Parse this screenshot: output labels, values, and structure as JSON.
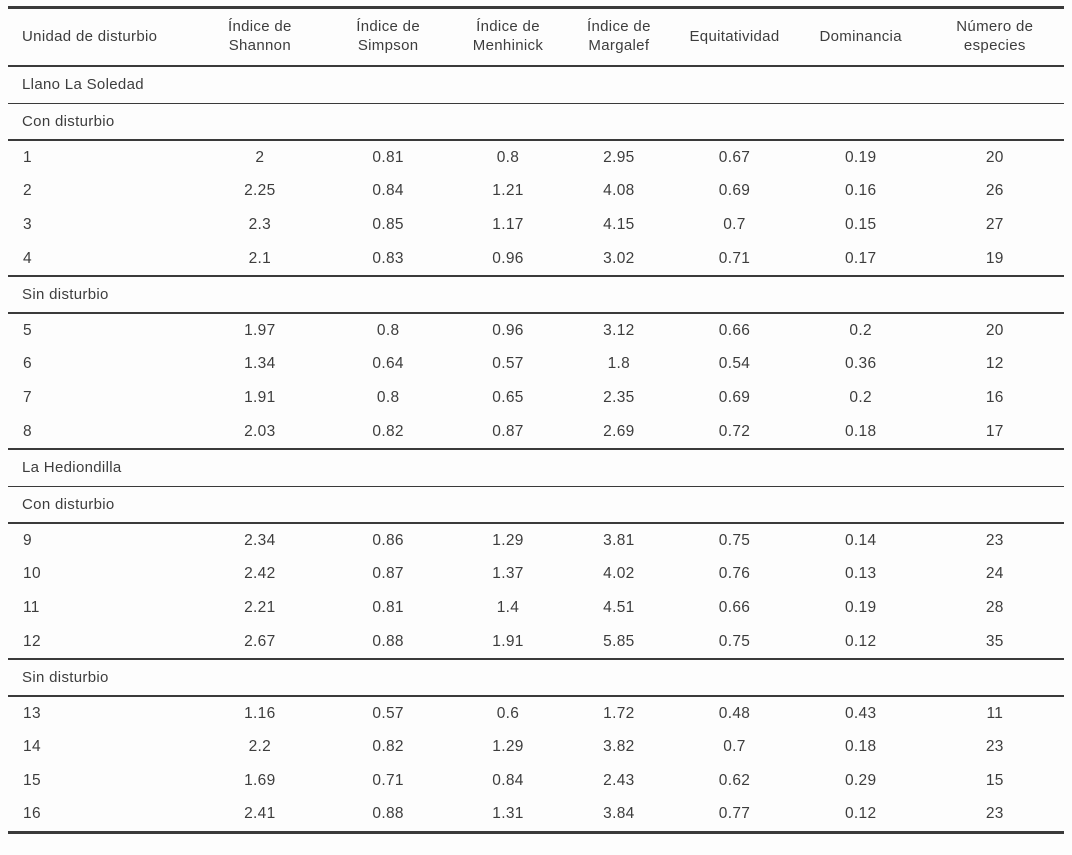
{
  "table": {
    "columns": [
      "Unidad de disturbio",
      "Índice de Shannon",
      "Índice de Simpson",
      "Índice de Menhinick",
      "Índice de Margalef",
      "Equitatividad",
      "Dominancia",
      "Número de especies"
    ],
    "rows": [
      {
        "type": "section",
        "label": "Llano La Soledad",
        "divider": "thin"
      },
      {
        "type": "section",
        "label": "Con disturbio",
        "divider": "thick"
      },
      {
        "type": "data",
        "divider": "none",
        "cells": [
          "1",
          "2",
          "0.81",
          "0.8",
          "2.95",
          "0.67",
          "0.19",
          "20"
        ]
      },
      {
        "type": "data",
        "divider": "none",
        "cells": [
          "2",
          "2.25",
          "0.84",
          "1.21",
          "4.08",
          "0.69",
          "0.16",
          "26"
        ]
      },
      {
        "type": "data",
        "divider": "none",
        "cells": [
          "3",
          "2.3",
          "0.85",
          "1.17",
          "4.15",
          "0.7",
          "0.15",
          "27"
        ]
      },
      {
        "type": "data",
        "divider": "thick",
        "cells": [
          "4",
          "2.1",
          "0.83",
          "0.96",
          "3.02",
          "0.71",
          "0.17",
          "19"
        ]
      },
      {
        "type": "section",
        "label": "Sin disturbio",
        "divider": "thick"
      },
      {
        "type": "data",
        "divider": "none",
        "cells": [
          "5",
          "1.97",
          "0.8",
          "0.96",
          "3.12",
          "0.66",
          "0.2",
          "20"
        ]
      },
      {
        "type": "data",
        "divider": "none",
        "cells": [
          "6",
          "1.34",
          "0.64",
          "0.57",
          "1.8",
          "0.54",
          "0.36",
          "12"
        ]
      },
      {
        "type": "data",
        "divider": "none",
        "cells": [
          "7",
          "1.91",
          "0.8",
          "0.65",
          "2.35",
          "0.69",
          "0.2",
          "16"
        ]
      },
      {
        "type": "data",
        "divider": "thick",
        "cells": [
          "8",
          "2.03",
          "0.82",
          "0.87",
          "2.69",
          "0.72",
          "0.18",
          "17"
        ]
      },
      {
        "type": "section",
        "label": "La Hediondilla",
        "divider": "thin"
      },
      {
        "type": "section",
        "label": "Con disturbio",
        "divider": "thick"
      },
      {
        "type": "data",
        "divider": "none",
        "cells": [
          "9",
          "2.34",
          "0.86",
          "1.29",
          "3.81",
          "0.75",
          "0.14",
          "23"
        ]
      },
      {
        "type": "data",
        "divider": "none",
        "cells": [
          "10",
          "2.42",
          "0.87",
          "1.37",
          "4.02",
          "0.76",
          "0.13",
          "24"
        ]
      },
      {
        "type": "data",
        "divider": "none",
        "cells": [
          "11",
          "2.21",
          "0.81",
          "1.4",
          "4.51",
          "0.66",
          "0.19",
          "28"
        ]
      },
      {
        "type": "data",
        "divider": "thick",
        "cells": [
          "12",
          "2.67",
          "0.88",
          "1.91",
          "5.85",
          "0.75",
          "0.12",
          "35"
        ]
      },
      {
        "type": "section",
        "label": "Sin disturbio",
        "divider": "thick"
      },
      {
        "type": "data",
        "divider": "none",
        "cells": [
          "13",
          "1.16",
          "0.57",
          "0.6",
          "1.72",
          "0.48",
          "0.43",
          "11"
        ]
      },
      {
        "type": "data",
        "divider": "none",
        "cells": [
          "14",
          "2.2",
          "0.82",
          "1.29",
          "3.82",
          "0.7",
          "0.18",
          "23"
        ]
      },
      {
        "type": "data",
        "divider": "none",
        "cells": [
          "15",
          "1.69",
          "0.71",
          "0.84",
          "2.43",
          "0.62",
          "0.29",
          "15"
        ]
      },
      {
        "type": "data",
        "divider": "none",
        "cells": [
          "16",
          "2.41",
          "0.88",
          "1.31",
          "3.84",
          "0.77",
          "0.12",
          "23"
        ]
      }
    ],
    "colors": {
      "text": "#3d3d3d",
      "line": "#3a3a3a",
      "background": "#fdfdfd"
    }
  }
}
